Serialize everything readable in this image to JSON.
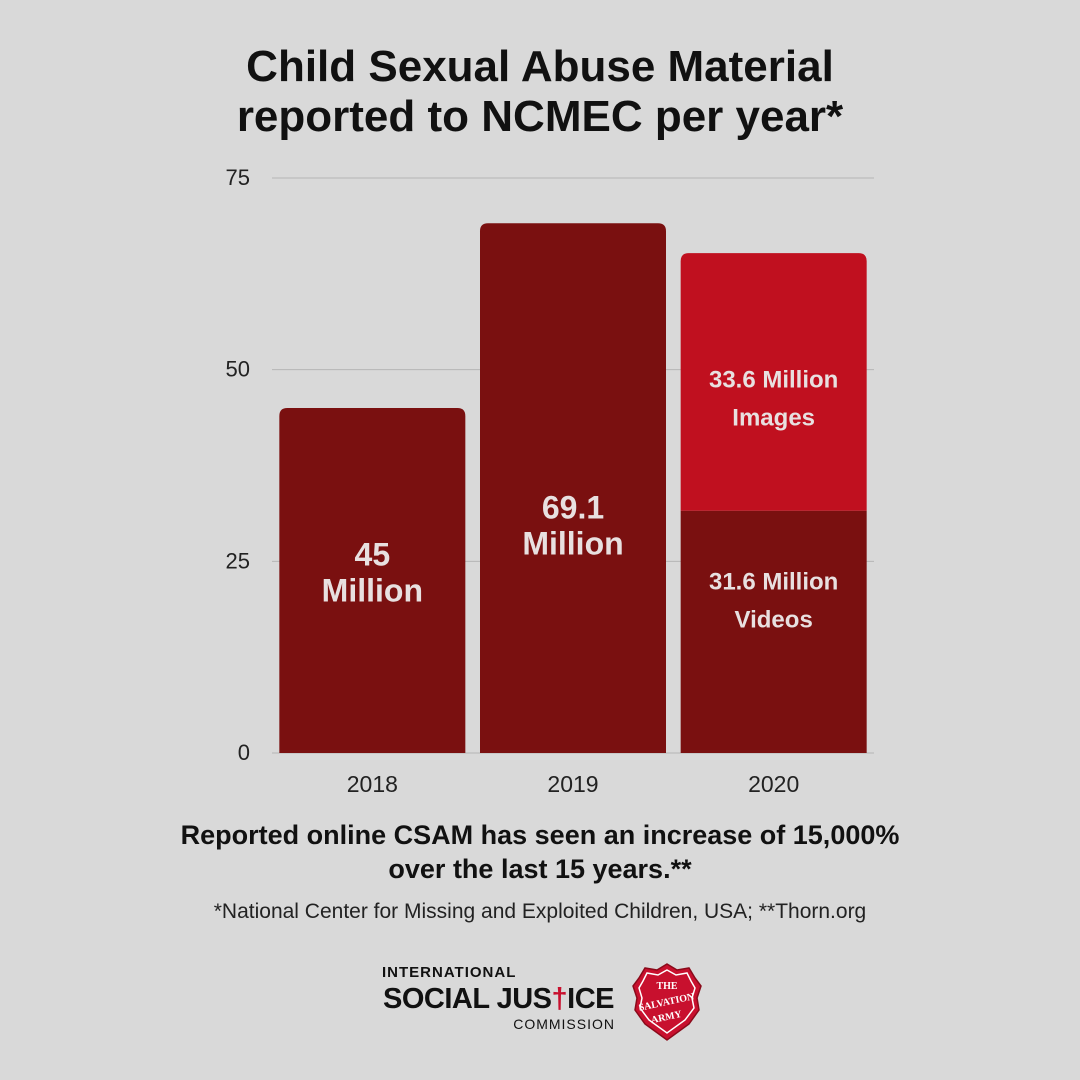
{
  "title": {
    "line1": "Child Sexual Abuse Material",
    "line2": "reported to NCMEC per year*"
  },
  "colors": {
    "dark_red": "#7a1010",
    "bright_red": "#c0101f",
    "label": "#e8e0e0",
    "background": "#d9d9d9"
  },
  "chart_data": {
    "type": "bar",
    "stacked": true,
    "categories": [
      "2018",
      "2019",
      "2020"
    ],
    "ylim": [
      0,
      75
    ],
    "yticks": [
      "0",
      "25",
      "50",
      "75"
    ],
    "grid": true,
    "series": [
      {
        "name": "Videos",
        "values": [
          45,
          69.1,
          31.6
        ],
        "color": "#7a1010"
      },
      {
        "name": "Images",
        "values": [
          0,
          0,
          33.6
        ],
        "color": "#c0101f"
      }
    ],
    "bar_labels": [
      {
        "category": "2018",
        "segment": "Videos",
        "lines": [
          "45",
          "Million"
        ]
      },
      {
        "category": "2019",
        "segment": "Videos",
        "lines": [
          "69.1",
          "Million"
        ]
      },
      {
        "category": "2020",
        "segment": "Images",
        "lines": [
          "33.6 Million",
          "Images"
        ]
      },
      {
        "category": "2020",
        "segment": "Videos",
        "lines": [
          "31.6 Million",
          "Videos"
        ]
      }
    ]
  },
  "footnote": {
    "line1": "Reported online CSAM has seen an increase of 15,000%",
    "line2": "over the last 15 years.**"
  },
  "source": "*National Center for Missing and Exploited Children, USA; **Thorn.org",
  "logo": {
    "line1": "INTERNATIONAL",
    "line2a": "SOCIAL JUS",
    "line2b": "†",
    "line2c": "ICE",
    "line3": "COMMISSION",
    "shield_text": [
      "THE",
      "SALVATION",
      "ARMY"
    ]
  }
}
